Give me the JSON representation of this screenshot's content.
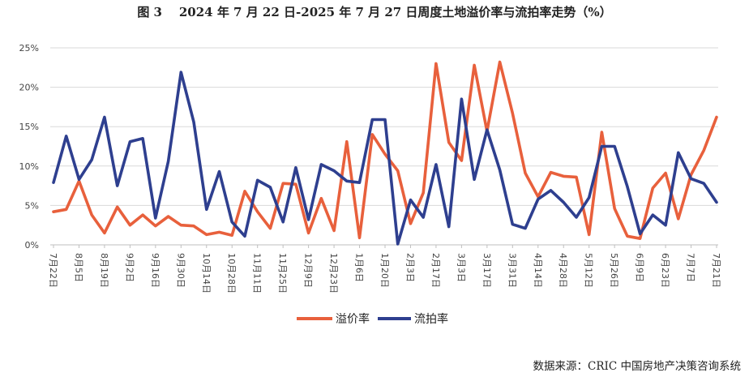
{
  "title": "图 3    2024 年 7 月 22 日-2025 年 7 月 27 日周度土地溢价率与流拍率走势（%）",
  "source": "数据来源：CRIC 中国房地产决策咨询系统",
  "colors": {
    "premium": "#E8603C",
    "unsold": "#2E3F8F",
    "axis": "#BFBFBF",
    "grid": "#D9D9D9"
  },
  "chart_data": {
    "type": "line",
    "ylim": [
      0,
      25
    ],
    "yticks": [
      "0%",
      "5%",
      "10%",
      "15%",
      "20%",
      "25%"
    ],
    "xlabels": [
      "7月22日",
      "8月5日",
      "8月19日",
      "9月2日",
      "9月16日",
      "9月30日",
      "10月14日",
      "10月28日",
      "11月11日",
      "11月25日",
      "12月9日",
      "12月23日",
      "1月6日",
      "1月20日",
      "2月3日",
      "2月17日",
      "3月3日",
      "3月17日",
      "3月31日",
      "4月14日",
      "4月28日",
      "5月12日",
      "5月26日",
      "6月9日",
      "6月23日",
      "7月7日",
      "7月21日"
    ],
    "series": [
      {
        "name": "溢价率",
        "values": [
          4.2,
          4.5,
          8.1,
          3.8,
          1.5,
          4.8,
          2.5,
          3.8,
          2.4,
          3.6,
          2.5,
          2.4,
          1.3,
          1.6,
          1.2,
          6.8,
          4.2,
          2.1,
          7.8,
          7.7,
          1.5,
          5.9,
          1.8,
          13.1,
          0.9,
          14.0,
          11.5,
          9.4,
          2.7,
          6.6,
          23.0,
          13.0,
          10.7,
          22.8,
          14.4,
          23.2,
          16.7,
          9.1,
          6.1,
          9.2,
          8.7,
          8.6,
          1.3,
          14.3,
          4.6,
          1.1,
          0.8,
          7.2,
          9.1,
          3.3,
          8.9,
          12.0,
          16.2
        ]
      },
      {
        "name": "流拍率",
        "values": [
          7.9,
          13.8,
          8.3,
          10.8,
          16.2,
          7.5,
          13.1,
          13.5,
          3.4,
          10.6,
          21.9,
          15.6,
          4.5,
          9.3,
          2.9,
          1.1,
          8.2,
          7.3,
          2.9,
          9.8,
          3.2,
          10.2,
          9.4,
          8.1,
          7.9,
          15.9,
          15.9,
          0.1,
          5.7,
          3.5,
          10.2,
          2.3,
          18.5,
          8.3,
          14.6,
          9.5,
          2.6,
          2.1,
          5.8,
          6.9,
          5.4,
          3.5,
          6.0,
          12.5,
          12.5,
          7.4,
          1.4,
          3.8,
          2.5,
          11.7,
          8.4,
          7.8,
          5.4
        ]
      }
    ]
  }
}
